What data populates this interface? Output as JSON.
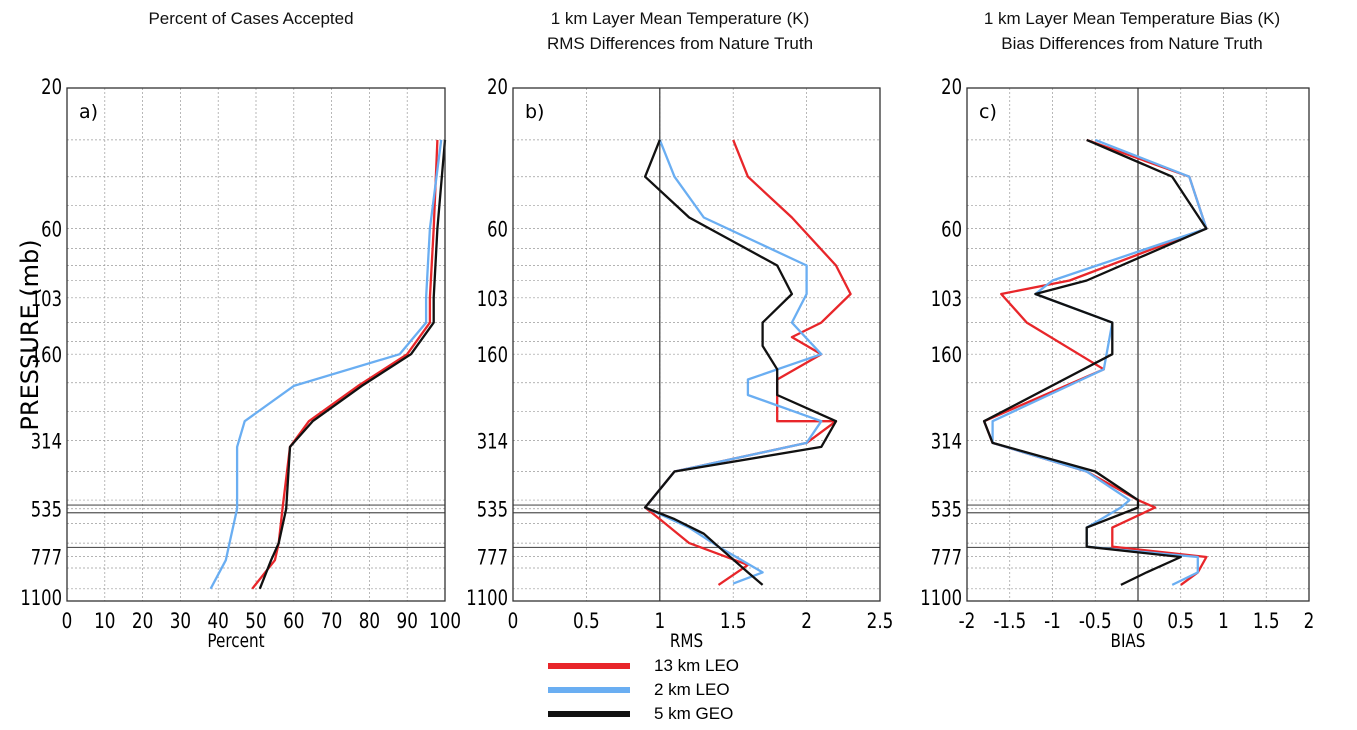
{
  "legend": [
    {
      "name": "13 km LEO",
      "color": "#e8262a"
    },
    {
      "name": "2 km LEO",
      "color": "#6aaef2"
    },
    {
      "name": "5 km GEO",
      "color": "#111111"
    }
  ],
  "chart_data": [
    {
      "type": "line",
      "panel_label": "a)",
      "title": "Percent of Cases Accepted",
      "xlabel": "Percent",
      "ylabel": "PRESSURE (mb)",
      "xlim": [
        0,
        100
      ],
      "xticks": [
        "0",
        "10",
        "20",
        "30",
        "40",
        "50",
        "60",
        "70",
        "80",
        "90",
        "100"
      ],
      "yticks": [
        "20",
        "60",
        "103",
        "160",
        "314",
        "535",
        "777",
        "1100"
      ],
      "grid": true,
      "series": [
        {
          "name": "13 km LEO",
          "color": "#e8262a",
          "x": [
            98,
            97,
            96,
            96,
            90,
            77,
            64,
            59,
            57,
            56,
            55,
            49
          ],
          "y": [
            30,
            60,
            103,
            125,
            160,
            205,
            270,
            330,
            535,
            700,
            800,
            1000
          ]
        },
        {
          "name": "2 km LEO",
          "color": "#6aaef2",
          "x": [
            99,
            96,
            95,
            95,
            88,
            60,
            47,
            45,
            45,
            43,
            42,
            38
          ],
          "y": [
            30,
            60,
            103,
            125,
            160,
            205,
            270,
            330,
            535,
            700,
            800,
            1000
          ]
        },
        {
          "name": "5 km GEO",
          "color": "#111111",
          "x": [
            100,
            98,
            97,
            97,
            91,
            78,
            65,
            59,
            58,
            56,
            54,
            51
          ],
          "y": [
            30,
            60,
            103,
            125,
            160,
            205,
            270,
            330,
            535,
            700,
            800,
            1000
          ]
        }
      ]
    },
    {
      "type": "line",
      "panel_label": "b)",
      "title": "1 km Layer Mean Temperature (K)",
      "subtitle": "RMS Differences from Nature Truth",
      "xlabel": "RMS",
      "xlim": [
        0,
        2.5
      ],
      "xticks": [
        "0",
        "0.5",
        "1",
        "1.5",
        "2",
        "2.5"
      ],
      "yticks": [
        "20",
        "60",
        "103",
        "160",
        "314",
        "535",
        "777",
        "1100"
      ],
      "grid": true,
      "series": [
        {
          "name": "13 km LEO",
          "color": "#e8262a",
          "x": [
            1.5,
            1.6,
            1.9,
            2.2,
            2.3,
            2.1,
            1.9,
            2.1,
            1.8,
            1.8,
            2.2,
            2.0,
            1.1,
            0.9,
            1.0,
            1.2,
            1.6,
            1.4
          ],
          "y": [
            30,
            40,
            55,
            80,
            100,
            125,
            140,
            160,
            195,
            270,
            270,
            320,
            400,
            530,
            580,
            700,
            830,
            970
          ]
        },
        {
          "name": "2 km LEO",
          "color": "#6aaef2",
          "x": [
            1.0,
            1.1,
            1.3,
            2.0,
            2.0,
            1.9,
            2.1,
            1.6,
            1.6,
            2.1,
            2.0,
            1.1,
            0.9,
            1.2,
            1.4,
            1.7,
            1.5
          ],
          "y": [
            30,
            40,
            55,
            80,
            100,
            125,
            160,
            195,
            220,
            270,
            320,
            400,
            530,
            620,
            720,
            880,
            960
          ]
        },
        {
          "name": "5 km GEO",
          "color": "#111111",
          "x": [
            1.0,
            0.9,
            1.2,
            1.8,
            1.9,
            1.7,
            1.7,
            1.8,
            1.8,
            2.2,
            2.1,
            1.1,
            0.9,
            1.1,
            1.3,
            1.4,
            1.6,
            1.7
          ],
          "y": [
            30,
            40,
            55,
            80,
            100,
            125,
            150,
            180,
            220,
            270,
            330,
            400,
            530,
            580,
            650,
            720,
            880,
            970
          ]
        }
      ]
    },
    {
      "type": "line",
      "panel_label": "c)",
      "title": "1 km Layer Mean Temperature Bias (K)",
      "subtitle": "Bias Differences from Nature Truth",
      "xlabel": "BIAS",
      "xlim": [
        -2,
        2
      ],
      "xticks": [
        "-2",
        "-1.5",
        "-1",
        "-0.5",
        "0",
        "0.5",
        "1",
        "1.5",
        "2"
      ],
      "yticks": [
        "20",
        "60",
        "103",
        "160",
        "314",
        "535",
        "777",
        "1100"
      ],
      "grid": true,
      "series": [
        {
          "name": "13 km LEO",
          "color": "#e8262a",
          "x": [
            -0.6,
            0.6,
            0.8,
            -0.8,
            -1.6,
            -1.3,
            -0.4,
            -1.8,
            -1.7,
            -0.6,
            0.0,
            0.2,
            -0.3,
            -0.3,
            0.8,
            0.7,
            0.5
          ],
          "y": [
            30,
            40,
            60,
            90,
            100,
            125,
            180,
            270,
            320,
            400,
            500,
            530,
            620,
            720,
            780,
            880,
            970
          ]
        },
        {
          "name": "2 km LEO",
          "color": "#6aaef2",
          "x": [
            -0.5,
            0.6,
            0.8,
            -1.0,
            -1.2,
            -0.3,
            -0.4,
            -1.7,
            -1.7,
            -0.6,
            -0.1,
            -0.2,
            -0.6,
            -0.6,
            0.7,
            0.7,
            0.4
          ],
          "y": [
            30,
            40,
            60,
            90,
            100,
            125,
            180,
            270,
            320,
            400,
            500,
            530,
            620,
            720,
            780,
            880,
            970
          ]
        },
        {
          "name": "5 km GEO",
          "color": "#111111",
          "x": [
            -0.6,
            0.4,
            0.8,
            -0.6,
            -1.2,
            -0.3,
            -0.3,
            -1.8,
            -1.7,
            -0.5,
            0.0,
            0.0,
            -0.6,
            -0.6,
            0.5,
            0.1,
            -0.2
          ],
          "y": [
            30,
            40,
            60,
            90,
            100,
            125,
            160,
            270,
            320,
            400,
            500,
            530,
            620,
            720,
            780,
            880,
            970
          ]
        }
      ]
    }
  ]
}
